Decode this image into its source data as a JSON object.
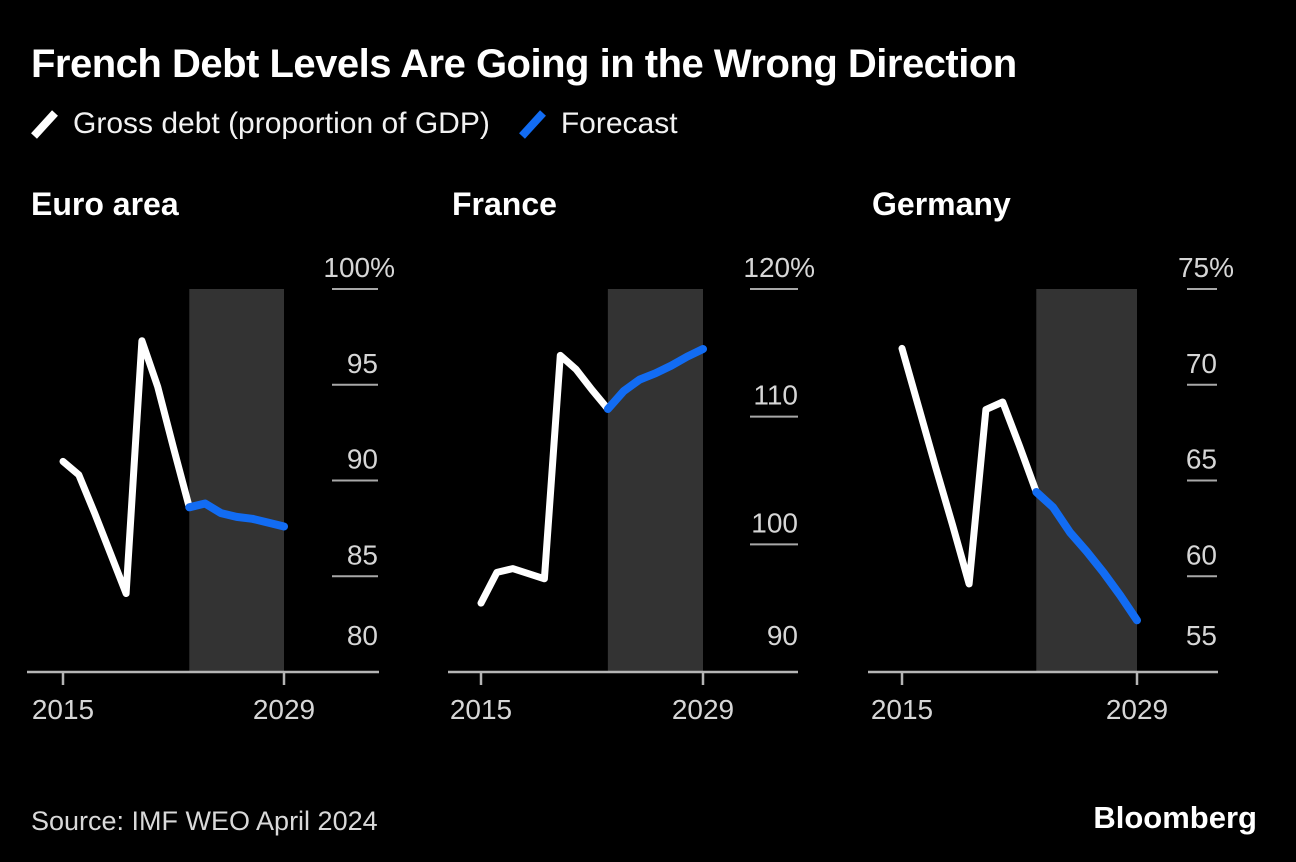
{
  "title": "French Debt Levels Are Going in the Wrong Direction",
  "legend": [
    {
      "label": "Gross debt (proportion of GDP)",
      "color": "#ffffff"
    },
    {
      "label": "Forecast",
      "color": "#126cf3"
    }
  ],
  "source": "Source: IMF WEO April 2024",
  "brand": "Bloomberg",
  "colors": {
    "background": "#000000",
    "actual_line": "#ffffff",
    "forecast_line": "#126cf3",
    "forecast_band": "#333333",
    "axis": "#b5b5b5",
    "tick": "#a8a8a8",
    "label": "#d6d6d6"
  },
  "chart_data": [
    {
      "title": "Euro area",
      "type": "line",
      "unit": "%",
      "ylim": [
        80,
        100
      ],
      "yticks": [
        100,
        95,
        90,
        85,
        80
      ],
      "ytick_labels": [
        "100%",
        "95",
        "90",
        "85",
        "80"
      ],
      "xticks": [
        2015,
        2029
      ],
      "xtick_labels": [
        "2015",
        "2029"
      ],
      "forecast_band": [
        2023,
        2029
      ],
      "grid": "right-ticks",
      "series": [
        {
          "name": "Gross debt (proportion of GDP)",
          "color": "#ffffff",
          "x": [
            2015,
            2016,
            2017,
            2018,
            2019,
            2020,
            2021,
            2022,
            2023
          ],
          "values": [
            91.0,
            90.3,
            88.3,
            86.2,
            84.1,
            97.3,
            94.9,
            91.7,
            88.6
          ]
        },
        {
          "name": "Forecast",
          "color": "#126cf3",
          "x": [
            2023,
            2024,
            2025,
            2026,
            2027,
            2028,
            2029
          ],
          "values": [
            88.6,
            88.8,
            88.3,
            88.1,
            88.0,
            87.8,
            87.6
          ]
        }
      ]
    },
    {
      "title": "France",
      "type": "line",
      "unit": "%",
      "ylim": [
        90,
        120
      ],
      "yticks": [
        120,
        110,
        100,
        90
      ],
      "ytick_labels": [
        "120%",
        "110",
        "100",
        "90"
      ],
      "xticks": [
        2015,
        2029
      ],
      "xtick_labels": [
        "2015",
        "2029"
      ],
      "forecast_band": [
        2023,
        2029
      ],
      "grid": "right-ticks",
      "series": [
        {
          "name": "Gross debt (proportion of GDP)",
          "color": "#ffffff",
          "x": [
            2015,
            2016,
            2017,
            2018,
            2019,
            2020,
            2021,
            2022,
            2023
          ],
          "values": [
            95.4,
            97.8,
            98.1,
            97.7,
            97.3,
            114.8,
            113.7,
            112.1,
            110.6
          ]
        },
        {
          "name": "Forecast",
          "color": "#126cf3",
          "x": [
            2023,
            2024,
            2025,
            2026,
            2027,
            2028,
            2029
          ],
          "values": [
            110.6,
            112.0,
            112.9,
            113.4,
            114.0,
            114.7,
            115.3
          ]
        }
      ]
    },
    {
      "title": "Germany",
      "type": "line",
      "unit": "%",
      "ylim": [
        55,
        75
      ],
      "yticks": [
        75,
        70,
        65,
        60,
        55
      ],
      "ytick_labels": [
        "75%",
        "70",
        "65",
        "60",
        "55"
      ],
      "xticks": [
        2015,
        2029
      ],
      "xtick_labels": [
        "2015",
        "2029"
      ],
      "forecast_band": [
        2023,
        2029
      ],
      "grid": "right-ticks",
      "series": [
        {
          "name": "Gross debt (proportion of GDP)",
          "color": "#ffffff",
          "x": [
            2015,
            2016,
            2017,
            2018,
            2019,
            2020,
            2021,
            2022,
            2023
          ],
          "values": [
            71.9,
            68.8,
            65.7,
            62.7,
            59.6,
            68.7,
            69.1,
            66.8,
            64.4
          ]
        },
        {
          "name": "Forecast",
          "color": "#126cf3",
          "x": [
            2023,
            2024,
            2025,
            2026,
            2027,
            2028,
            2029
          ],
          "values": [
            64.4,
            63.6,
            62.3,
            61.3,
            60.2,
            59.0,
            57.7
          ]
        }
      ]
    }
  ]
}
